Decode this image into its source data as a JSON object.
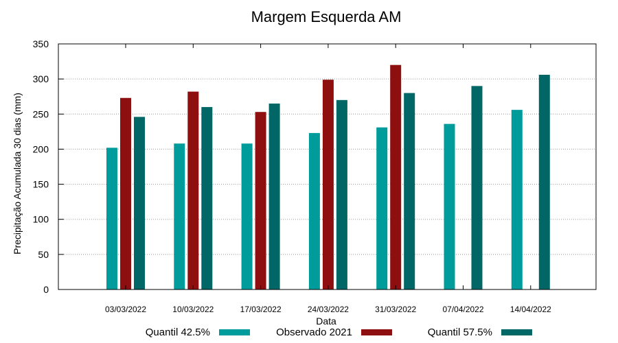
{
  "chart_data": {
    "type": "bar",
    "title": "Margem Esquerda AM",
    "xlabel": "Data",
    "ylabel": "Precipitação Acumulada 30 dias (mm)",
    "ylim": [
      0,
      350
    ],
    "yticks": [
      0,
      50,
      100,
      150,
      200,
      250,
      300,
      350
    ],
    "grid": true,
    "legend_position": "bottom",
    "categories": [
      "03/03/2022",
      "10/03/2022",
      "17/03/2022",
      "24/03/2022",
      "31/03/2022",
      "07/04/2022",
      "14/04/2022"
    ],
    "series": [
      {
        "name": "Quantil 42.5%",
        "color": "#009c9c",
        "values": [
          202,
          208,
          208,
          223,
          231,
          236,
          256
        ]
      },
      {
        "name": "Observado 2021",
        "color": "#8e0f0f",
        "values": [
          273,
          282,
          253,
          299,
          320,
          null,
          null
        ]
      },
      {
        "name": "Quantil 57.5%",
        "color": "#006666",
        "values": [
          246,
          260,
          265,
          270,
          280,
          290,
          306
        ]
      }
    ]
  }
}
